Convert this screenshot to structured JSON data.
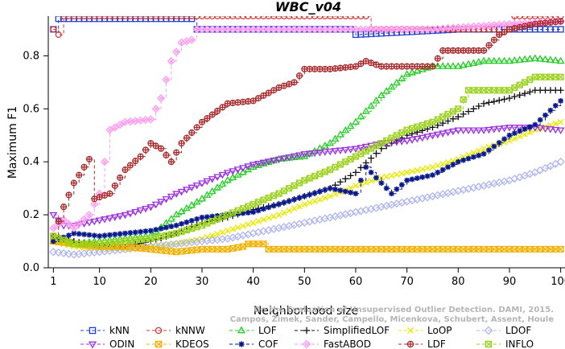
{
  "chart_data": {
    "type": "line",
    "title": "WBC_v04",
    "xlabel": "Neighborhood size",
    "ylabel": "Maximum F1",
    "xlim": [
      0,
      101
    ],
    "ylim": [
      0,
      0.95
    ],
    "xticks": [
      1,
      10,
      20,
      30,
      40,
      50,
      60,
      70,
      80,
      90,
      100
    ],
    "yticks": [
      0.0,
      0.2,
      0.4,
      0.6,
      0.8
    ],
    "ytick_labels": [
      "0.0",
      "0.2",
      "0.4",
      "0.6",
      "0.8"
    ],
    "legend_position": "bottom",
    "watermark": "Campos, Zimek, Sander, Campello, Micenkova, Schubert, Assent, Houle",
    "watermark_top": "On the Evaluation of Unsupervised Outlier Detection. DAMI, 2015.",
    "series": [
      {
        "name": "kNN",
        "color": "#1f3fd1",
        "marker": "square",
        "dash": "4,3",
        "points": [
          [
            1,
            0.9
          ],
          [
            2,
            0.94
          ],
          [
            10,
            0.94
          ],
          [
            20,
            0.94
          ],
          [
            28,
            0.94
          ],
          [
            29,
            0.9
          ],
          [
            40,
            0.9
          ],
          [
            55,
            0.9
          ],
          [
            59,
            0.9
          ],
          [
            60,
            0.88
          ],
          [
            70,
            0.89
          ],
          [
            80,
            0.9
          ],
          [
            90,
            0.9
          ],
          [
            100,
            0.9
          ]
        ]
      },
      {
        "name": "kNNW",
        "color": "#d43a3a",
        "marker": "circle",
        "dash": "4,3",
        "points": [
          [
            1,
            0.9
          ],
          [
            2,
            0.88
          ],
          [
            3,
            0.95
          ],
          [
            20,
            0.95
          ],
          [
            40,
            0.95
          ],
          [
            62,
            0.95
          ],
          [
            63,
            0.9
          ],
          [
            70,
            0.9
          ],
          [
            87,
            0.9
          ],
          [
            88,
            0.88
          ],
          [
            90,
            0.9
          ],
          [
            91,
            0.95
          ],
          [
            100,
            0.95
          ]
        ]
      },
      {
        "name": "LOF",
        "color": "#22cc22",
        "marker": "triangle-up",
        "dash": "4,3",
        "points": [
          [
            1,
            0.1
          ],
          [
            5,
            0.09
          ],
          [
            10,
            0.1
          ],
          [
            15,
            0.11
          ],
          [
            20,
            0.12
          ],
          [
            25,
            0.2
          ],
          [
            30,
            0.26
          ],
          [
            35,
            0.33
          ],
          [
            40,
            0.38
          ],
          [
            45,
            0.41
          ],
          [
            50,
            0.42
          ],
          [
            55,
            0.47
          ],
          [
            60,
            0.55
          ],
          [
            65,
            0.65
          ],
          [
            70,
            0.73
          ],
          [
            75,
            0.76
          ],
          [
            80,
            0.76
          ],
          [
            85,
            0.78
          ],
          [
            90,
            0.78
          ],
          [
            95,
            0.79
          ],
          [
            100,
            0.78
          ]
        ]
      },
      {
        "name": "SimplifiedLOF",
        "color": "#111111",
        "marker": "plus",
        "dash": "4,3",
        "points": [
          [
            1,
            0.12
          ],
          [
            5,
            0.1
          ],
          [
            10,
            0.08
          ],
          [
            15,
            0.08
          ],
          [
            20,
            0.1
          ],
          [
            25,
            0.13
          ],
          [
            30,
            0.17
          ],
          [
            35,
            0.19
          ],
          [
            40,
            0.22
          ],
          [
            45,
            0.24
          ],
          [
            50,
            0.27
          ],
          [
            55,
            0.3
          ],
          [
            60,
            0.36
          ],
          [
            65,
            0.45
          ],
          [
            70,
            0.5
          ],
          [
            75,
            0.53
          ],
          [
            80,
            0.57
          ],
          [
            85,
            0.62
          ],
          [
            90,
            0.64
          ],
          [
            95,
            0.67
          ],
          [
            100,
            0.67
          ]
        ]
      },
      {
        "name": "LoOP",
        "color": "#e8e800",
        "marker": "x",
        "dash": "4,3",
        "points": [
          [
            1,
            0.1
          ],
          [
            5,
            0.08
          ],
          [
            10,
            0.07
          ],
          [
            15,
            0.07
          ],
          [
            20,
            0.08
          ],
          [
            25,
            0.09
          ],
          [
            30,
            0.11
          ],
          [
            35,
            0.14
          ],
          [
            40,
            0.17
          ],
          [
            45,
            0.2
          ],
          [
            50,
            0.24
          ],
          [
            55,
            0.27
          ],
          [
            60,
            0.31
          ],
          [
            65,
            0.34
          ],
          [
            70,
            0.36
          ],
          [
            75,
            0.38
          ],
          [
            80,
            0.41
          ],
          [
            85,
            0.45
          ],
          [
            90,
            0.48
          ],
          [
            95,
            0.52
          ],
          [
            100,
            0.55
          ]
        ]
      },
      {
        "name": "LDOF",
        "color": "#b0b6f0",
        "marker": "diamond",
        "dash": "4,3",
        "points": [
          [
            1,
            0.06
          ],
          [
            5,
            0.05
          ],
          [
            10,
            0.06
          ],
          [
            15,
            0.07
          ],
          [
            20,
            0.08
          ],
          [
            25,
            0.09
          ],
          [
            30,
            0.1
          ],
          [
            35,
            0.11
          ],
          [
            40,
            0.13
          ],
          [
            45,
            0.15
          ],
          [
            50,
            0.17
          ],
          [
            55,
            0.19
          ],
          [
            60,
            0.21
          ],
          [
            65,
            0.23
          ],
          [
            70,
            0.25
          ],
          [
            75,
            0.27
          ],
          [
            80,
            0.29
          ],
          [
            85,
            0.31
          ],
          [
            90,
            0.33
          ],
          [
            95,
            0.36
          ],
          [
            100,
            0.4
          ]
        ]
      },
      {
        "name": "ODIN",
        "color": "#9b30e0",
        "marker": "triangle-down",
        "dash": "4,3",
        "points": [
          [
            1,
            0.2
          ],
          [
            3,
            0.16
          ],
          [
            5,
            0.16
          ],
          [
            10,
            0.18
          ],
          [
            15,
            0.2
          ],
          [
            20,
            0.23
          ],
          [
            25,
            0.28
          ],
          [
            30,
            0.32
          ],
          [
            35,
            0.36
          ],
          [
            40,
            0.39
          ],
          [
            45,
            0.41
          ],
          [
            50,
            0.43
          ],
          [
            55,
            0.44
          ],
          [
            60,
            0.45
          ],
          [
            65,
            0.47
          ],
          [
            70,
            0.48
          ],
          [
            75,
            0.5
          ],
          [
            80,
            0.52
          ],
          [
            85,
            0.52
          ],
          [
            90,
            0.53
          ],
          [
            95,
            0.53
          ],
          [
            100,
            0.52
          ]
        ]
      },
      {
        "name": "KDEOS",
        "color": "#f2b100",
        "marker": "square-x",
        "dash": "4,3",
        "points": [
          [
            1,
            0.1
          ],
          [
            5,
            0.09
          ],
          [
            10,
            0.08
          ],
          [
            15,
            0.08
          ],
          [
            20,
            0.07
          ],
          [
            25,
            0.06
          ],
          [
            30,
            0.07
          ],
          [
            35,
            0.07
          ],
          [
            38,
            0.08
          ],
          [
            39,
            0.09
          ],
          [
            42,
            0.09
          ],
          [
            43,
            0.07
          ],
          [
            50,
            0.07
          ],
          [
            60,
            0.07
          ],
          [
            70,
            0.07
          ],
          [
            80,
            0.07
          ],
          [
            90,
            0.07
          ],
          [
            100,
            0.07
          ]
        ]
      },
      {
        "name": "COF",
        "color": "#0a1a8a",
        "marker": "asterisk",
        "dash": "4,3",
        "points": [
          [
            1,
            0.1
          ],
          [
            5,
            0.13
          ],
          [
            10,
            0.12
          ],
          [
            15,
            0.13
          ],
          [
            20,
            0.14
          ],
          [
            25,
            0.16
          ],
          [
            30,
            0.19
          ],
          [
            35,
            0.2
          ],
          [
            40,
            0.21
          ],
          [
            45,
            0.24
          ],
          [
            50,
            0.27
          ],
          [
            55,
            0.3
          ],
          [
            60,
            0.28
          ],
          [
            62,
            0.38
          ],
          [
            65,
            0.32
          ],
          [
            67,
            0.28
          ],
          [
            70,
            0.33
          ],
          [
            75,
            0.35
          ],
          [
            80,
            0.4
          ],
          [
            85,
            0.43
          ],
          [
            90,
            0.5
          ],
          [
            95,
            0.54
          ],
          [
            100,
            0.63
          ]
        ]
      },
      {
        "name": "FastABOD",
        "color": "#ff9cf0",
        "marker": "diamond-x",
        "dash": "4,3",
        "points": [
          [
            1,
            0.15
          ],
          [
            3,
            0.18
          ],
          [
            5,
            0.15
          ],
          [
            8,
            0.2
          ],
          [
            10,
            0.28
          ],
          [
            12,
            0.52
          ],
          [
            15,
            0.55
          ],
          [
            20,
            0.56
          ],
          [
            22,
            0.64
          ],
          [
            24,
            0.78
          ],
          [
            26,
            0.85
          ],
          [
            28,
            0.86
          ],
          [
            29,
            0.9
          ],
          [
            35,
            0.9
          ],
          [
            45,
            0.9
          ],
          [
            60,
            0.9
          ],
          [
            75,
            0.9
          ],
          [
            90,
            0.92
          ],
          [
            100,
            0.93
          ]
        ]
      },
      {
        "name": "LDF",
        "color": "#a8282a",
        "marker": "circle-plus",
        "dash": "4,3",
        "points": [
          [
            1,
            0.12
          ],
          [
            3,
            0.23
          ],
          [
            5,
            0.32
          ],
          [
            8,
            0.41
          ],
          [
            9,
            0.26
          ],
          [
            12,
            0.28
          ],
          [
            15,
            0.37
          ],
          [
            18,
            0.42
          ],
          [
            20,
            0.47
          ],
          [
            22,
            0.45
          ],
          [
            24,
            0.4
          ],
          [
            26,
            0.47
          ],
          [
            30,
            0.55
          ],
          [
            35,
            0.62
          ],
          [
            40,
            0.63
          ],
          [
            45,
            0.68
          ],
          [
            48,
            0.7
          ],
          [
            50,
            0.75
          ],
          [
            55,
            0.75
          ],
          [
            60,
            0.76
          ],
          [
            62,
            0.78
          ],
          [
            65,
            0.76
          ],
          [
            70,
            0.76
          ],
          [
            75,
            0.76
          ],
          [
            77,
            0.82
          ],
          [
            85,
            0.82
          ],
          [
            88,
            0.88
          ],
          [
            90,
            0.9
          ],
          [
            95,
            0.92
          ],
          [
            100,
            0.93
          ]
        ]
      },
      {
        "name": "INFLO",
        "color": "#9bd21e",
        "marker": "square-x",
        "dash": "4,3",
        "points": [
          [
            1,
            0.12
          ],
          [
            5,
            0.09
          ],
          [
            10,
            0.09
          ],
          [
            15,
            0.1
          ],
          [
            20,
            0.11
          ],
          [
            25,
            0.13
          ],
          [
            30,
            0.16
          ],
          [
            35,
            0.2
          ],
          [
            40,
            0.24
          ],
          [
            45,
            0.28
          ],
          [
            50,
            0.33
          ],
          [
            55,
            0.37
          ],
          [
            60,
            0.42
          ],
          [
            65,
            0.47
          ],
          [
            70,
            0.52
          ],
          [
            75,
            0.55
          ],
          [
            80,
            0.6
          ],
          [
            82,
            0.67
          ],
          [
            85,
            0.67
          ],
          [
            90,
            0.67
          ],
          [
            95,
            0.72
          ],
          [
            100,
            0.72
          ]
        ]
      }
    ]
  }
}
